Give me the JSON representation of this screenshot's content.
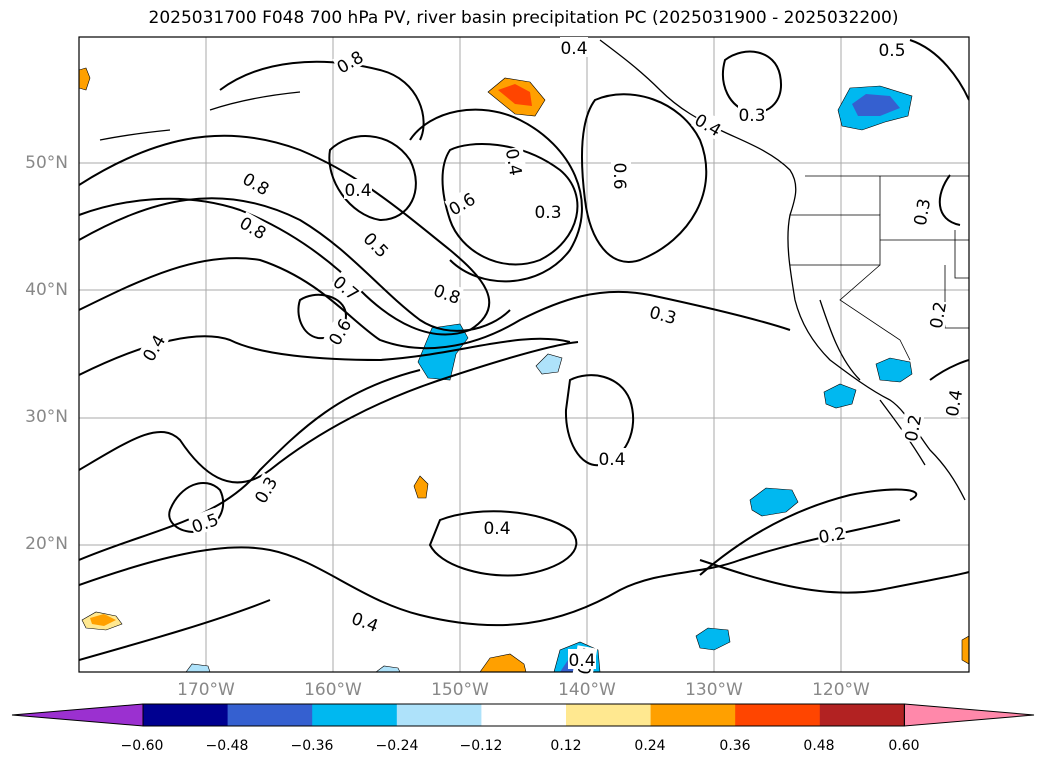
{
  "title": "2025031700 F048 700 hPa PV, river basin precipitation PC (2025031900 - 2025032200)",
  "axes": {
    "lat_labels": [
      "50°N",
      "40°N",
      "30°N",
      "20°N"
    ],
    "lon_labels": [
      "170°W",
      "160°W",
      "150°W",
      "140°W",
      "130°W",
      "120°W"
    ]
  },
  "contour_labels": [
    "0.4",
    "0.5",
    "0.8",
    "0.8",
    "0.4",
    "0.4",
    "0.6",
    "0.3",
    "0.6",
    "0.3",
    "0.4",
    "0.8",
    "0.5",
    "0.7",
    "0.8",
    "0.6",
    "0.4",
    "0.3",
    "0.4",
    "0.4",
    "0.3",
    "0.5",
    "0.4",
    "0.2",
    "0.3",
    "0.2",
    "0.2",
    "0.4",
    "0.3",
    "0.4"
  ],
  "colorbar": {
    "ticks": [
      "−0.60",
      "−0.48",
      "−0.36",
      "−0.24",
      "−0.12",
      "0.12",
      "0.24",
      "0.36",
      "0.48",
      "0.60"
    ],
    "colors": [
      "#9b30d0",
      "#000090",
      "#3560d0",
      "#00b8f0",
      "#aee2fa",
      "#ffffff",
      "#ffe890",
      "#ffa000",
      "#ff4500",
      "#b22222",
      "#ff88aa"
    ]
  },
  "chart_data": {
    "type": "heatmap",
    "title": "2025031700 F048 700 hPa PV, river basin precipitation PC (2025031900 - 2025032200)",
    "xlabel": "",
    "ylabel": "",
    "xlim": [
      "180°W",
      "110°W"
    ],
    "ylim": [
      "10°N",
      "60°N"
    ],
    "grid": true,
    "contour_levels": [
      0.2,
      0.3,
      0.4,
      0.5,
      0.6,
      0.7,
      0.8
    ],
    "fill_levels": [
      -0.6,
      -0.48,
      -0.36,
      -0.24,
      -0.12,
      0.12,
      0.24,
      0.36,
      0.48,
      0.6
    ]
  }
}
